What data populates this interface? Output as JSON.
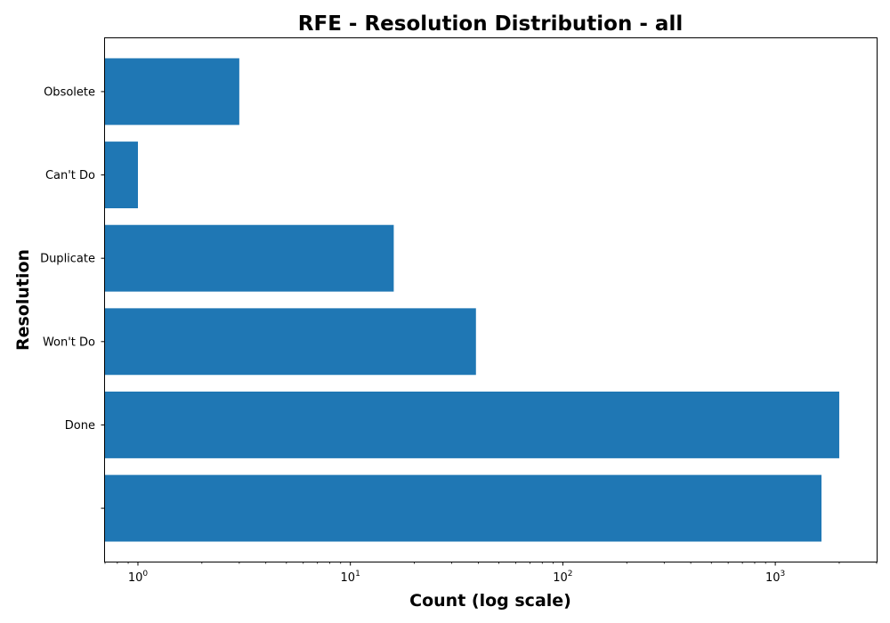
{
  "chart_data": {
    "type": "bar",
    "orientation": "horizontal",
    "title": "RFE - Resolution Distribution - all",
    "xlabel": "Count (log scale)",
    "ylabel": "Resolution",
    "x_scale": "log",
    "xlim": [
      0.7,
      3000
    ],
    "x_ticks": [
      {
        "value": 1,
        "label": "10^0"
      },
      {
        "value": 10,
        "label": "10^1"
      },
      {
        "value": 100,
        "label": "10^2"
      },
      {
        "value": 1000,
        "label": "10^3"
      }
    ],
    "categories": [
      "",
      "Done",
      "Won't Do",
      "Duplicate",
      "Can't Do",
      "Obsolete"
    ],
    "values": [
      1650,
      2000,
      39,
      16,
      1,
      3
    ],
    "bar_color": "#1f77b4",
    "grid": false,
    "legend": "none"
  }
}
